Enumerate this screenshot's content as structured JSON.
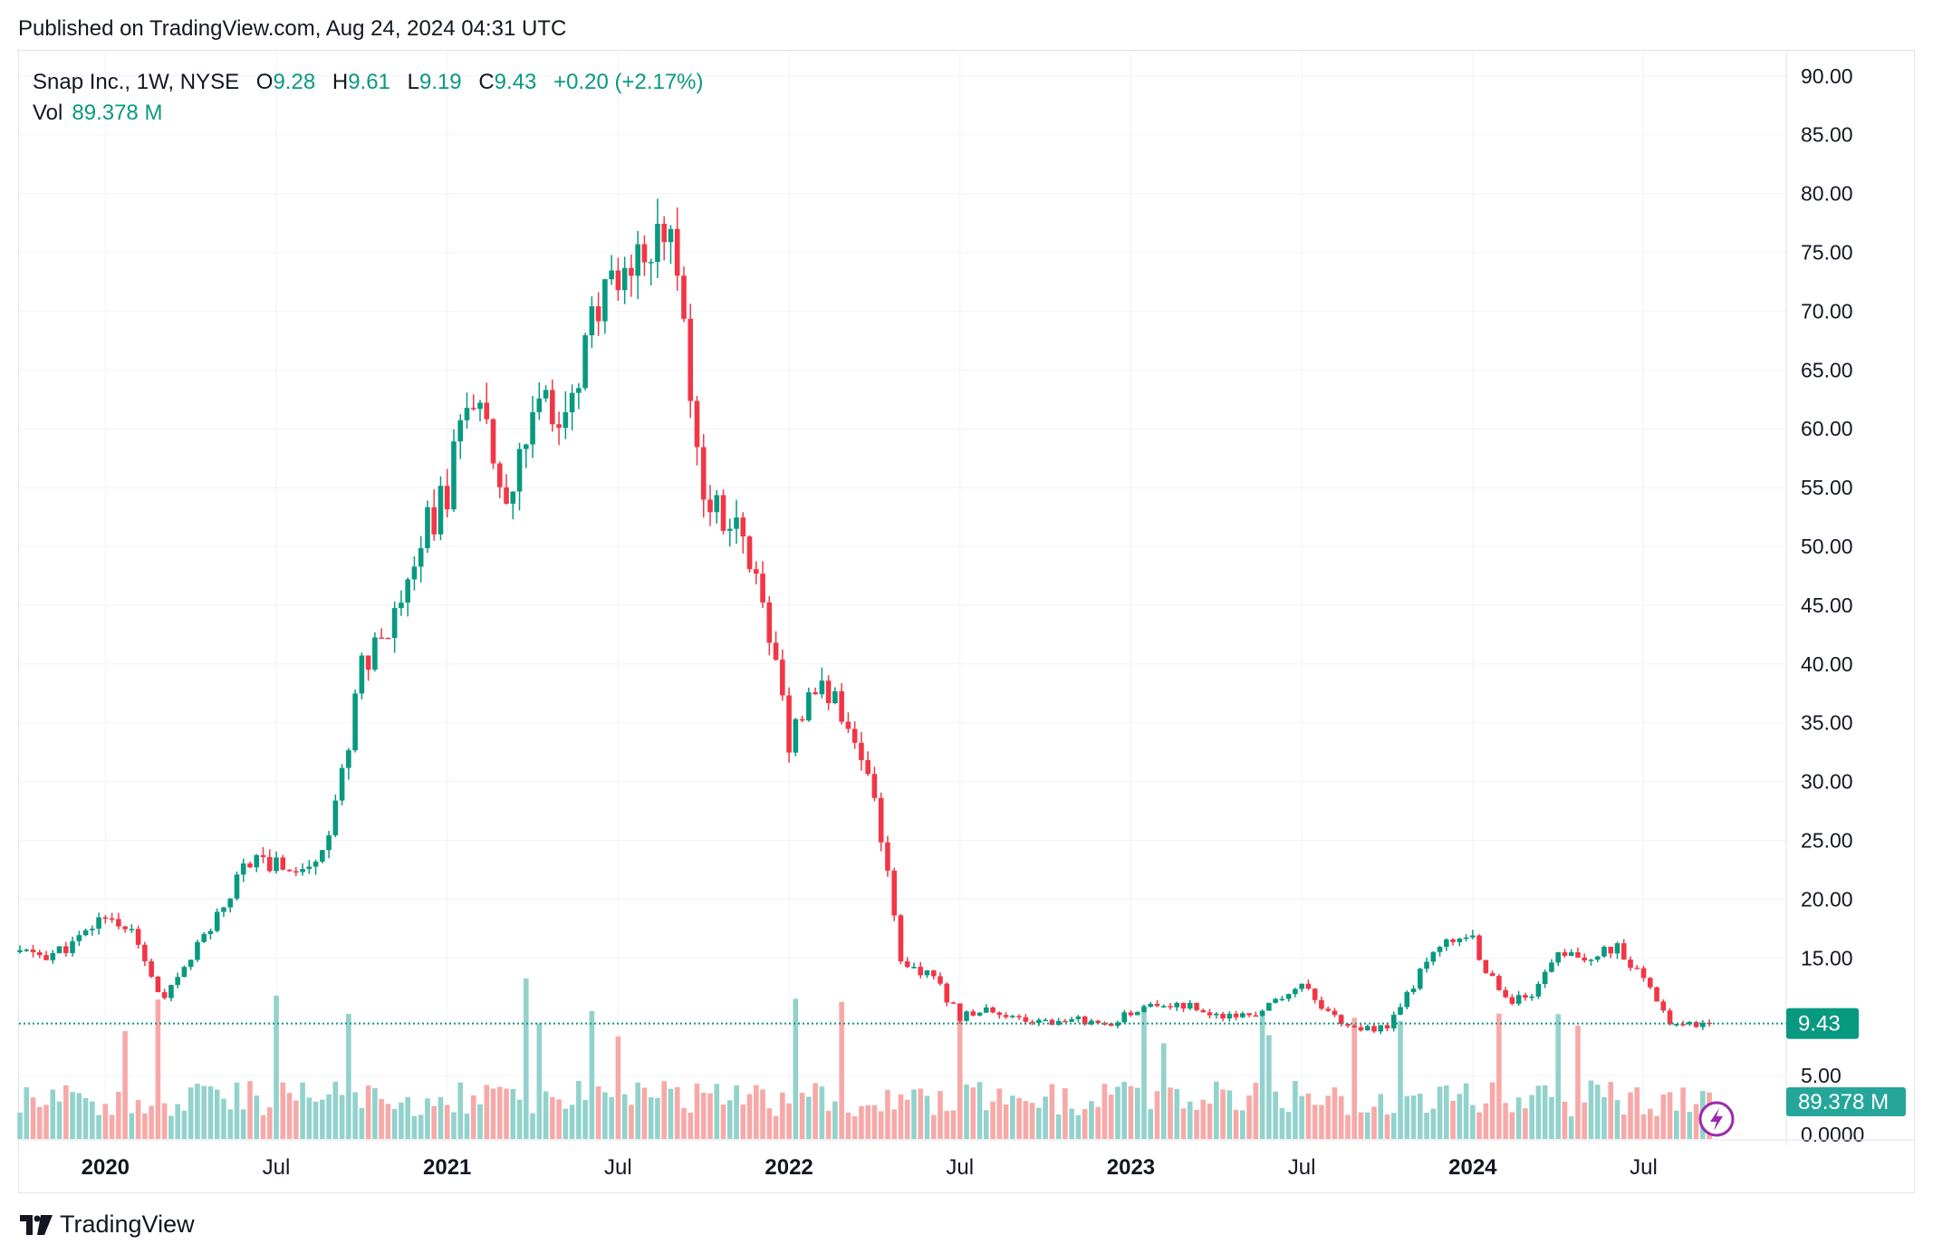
{
  "header": {
    "published_text": "Published on TradingView.com, Aug 24, 2024 04:31 UTC"
  },
  "legend": {
    "symbol": "Snap Inc., 1W, NYSE",
    "open_label": "O",
    "open": "9.28",
    "high_label": "H",
    "high": "9.61",
    "low_label": "L",
    "low": "9.19",
    "close_label": "C",
    "close": "9.43",
    "change": "+0.20 (+2.17%)",
    "vol_label": "Vol",
    "vol": "89.378 M"
  },
  "footer": {
    "brand": "TradingView"
  },
  "price_badge": "9.43",
  "volume_badge": "89.378 M",
  "lightning_icon": "lightning-icon",
  "colors": {
    "up": "#089981",
    "down": "#f23645",
    "up_vol": "#92d2cc",
    "down_vol": "#f7a9a7",
    "grid": "#f0f3fa",
    "axis_text": "#131722"
  },
  "chart_data": {
    "type": "candlestick",
    "interval": "1W",
    "symbol": "SNAP",
    "y_axis": {
      "ticks": [
        "90.00",
        "85.00",
        "80.00",
        "75.00",
        "70.00",
        "65.00",
        "60.00",
        "55.00",
        "50.00",
        "45.00",
        "40.00",
        "35.00",
        "30.00",
        "25.00",
        "20.00",
        "15.00",
        "5.00",
        "0.0000"
      ],
      "range": [
        0,
        92
      ]
    },
    "x_axis": {
      "ticks": [
        "2020",
        "Jul",
        "2021",
        "Jul",
        "2022",
        "Jul",
        "2023",
        "Jul",
        "2024",
        "Jul"
      ]
    },
    "last_close": 9.43,
    "last_volume": "89.378 M",
    "close_series": [
      {
        "date": "2019-10",
        "close": 15.5
      },
      {
        "date": "2019-11",
        "close": 15.2
      },
      {
        "date": "2019-12",
        "close": 16.3
      },
      {
        "date": "2020-01",
        "close": 18.8
      },
      {
        "date": "2020-02",
        "close": 16.9
      },
      {
        "date": "2020-03",
        "close": 11.0
      },
      {
        "date": "2020-04",
        "close": 15.2
      },
      {
        "date": "2020-05",
        "close": 18.8
      },
      {
        "date": "2020-06",
        "close": 23.5
      },
      {
        "date": "2020-07",
        "close": 23.0
      },
      {
        "date": "2020-08",
        "close": 22.3
      },
      {
        "date": "2020-09",
        "close": 26.5
      },
      {
        "date": "2020-10",
        "close": 40.0
      },
      {
        "date": "2020-11",
        "close": 44.0
      },
      {
        "date": "2020-12",
        "close": 50.3
      },
      {
        "date": "2021-01",
        "close": 55.0
      },
      {
        "date": "2021-02",
        "close": 64.0
      },
      {
        "date": "2021-03",
        "close": 52.0
      },
      {
        "date": "2021-04",
        "close": 61.0
      },
      {
        "date": "2021-05",
        "close": 62.0
      },
      {
        "date": "2021-06",
        "close": 68.0
      },
      {
        "date": "2021-07",
        "close": 74.0
      },
      {
        "date": "2021-08",
        "close": 76.0
      },
      {
        "date": "2021-09",
        "close": 75.0
      },
      {
        "date": "2021-10",
        "close": 54.0
      },
      {
        "date": "2021-11",
        "close": 52.0
      },
      {
        "date": "2021-12",
        "close": 47.0
      },
      {
        "date": "2022-01",
        "close": 33.0
      },
      {
        "date": "2022-02",
        "close": 38.0
      },
      {
        "date": "2022-03",
        "close": 36.0
      },
      {
        "date": "2022-04",
        "close": 29.0
      },
      {
        "date": "2022-05",
        "close": 14.0
      },
      {
        "date": "2022-06",
        "close": 13.5
      },
      {
        "date": "2022-07",
        "close": 10.0
      },
      {
        "date": "2022-08",
        "close": 10.5
      },
      {
        "date": "2022-09",
        "close": 9.8
      },
      {
        "date": "2022-10",
        "close": 9.5
      },
      {
        "date": "2022-11",
        "close": 10.0
      },
      {
        "date": "2022-12",
        "close": 9.0
      },
      {
        "date": "2023-01",
        "close": 10.5
      },
      {
        "date": "2023-02",
        "close": 11.0
      },
      {
        "date": "2023-03",
        "close": 11.0
      },
      {
        "date": "2023-04",
        "close": 10.0
      },
      {
        "date": "2023-05",
        "close": 10.0
      },
      {
        "date": "2023-06",
        "close": 11.0
      },
      {
        "date": "2023-07",
        "close": 13.0
      },
      {
        "date": "2023-08",
        "close": 10.0
      },
      {
        "date": "2023-09",
        "close": 9.0
      },
      {
        "date": "2023-10",
        "close": 9.0
      },
      {
        "date": "2023-11",
        "close": 13.0
      },
      {
        "date": "2023-12",
        "close": 17.0
      },
      {
        "date": "2024-01",
        "close": 16.5
      },
      {
        "date": "2024-02",
        "close": 11.5
      },
      {
        "date": "2024-03",
        "close": 11.5
      },
      {
        "date": "2024-04",
        "close": 15.0
      },
      {
        "date": "2024-05",
        "close": 15.0
      },
      {
        "date": "2024-06",
        "close": 16.0
      },
      {
        "date": "2024-07",
        "close": 13.0
      },
      {
        "date": "2024-08",
        "close": 9.43
      }
    ]
  }
}
